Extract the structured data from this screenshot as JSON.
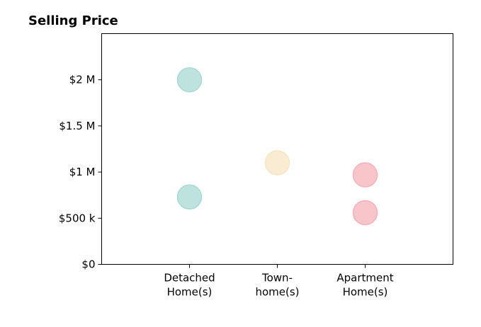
{
  "chart_data": {
    "type": "scatter",
    "title": "Selling Price",
    "xlabel": "",
    "ylabel": "",
    "categories": [
      [
        "Detached",
        "Home(s)"
      ],
      [
        "Town-",
        "home(s)"
      ],
      [
        "Apartment",
        "Home(s)"
      ]
    ],
    "xlim": [
      0,
      4
    ],
    "ylim": [
      0,
      2500000
    ],
    "y_ticks": [
      {
        "value": 0,
        "label": "$0"
      },
      {
        "value": 500000,
        "label": "$500 k"
      },
      {
        "value": 1000000,
        "label": "$1 M"
      },
      {
        "value": 1500000,
        "label": "$1.5 M"
      },
      {
        "value": 2000000,
        "label": "$2 M"
      }
    ],
    "grid": false,
    "points": [
      {
        "category": 0,
        "value": 2000000,
        "color": "#a8dad3"
      },
      {
        "category": 0,
        "value": 730000,
        "color": "#a8dad3"
      },
      {
        "category": 1,
        "value": 1100000,
        "color": "#f7e6c4"
      },
      {
        "category": 2,
        "value": 970000,
        "color": "#f6b2b8"
      },
      {
        "category": 2,
        "value": 560000,
        "color": "#f6b2b8"
      }
    ]
  }
}
